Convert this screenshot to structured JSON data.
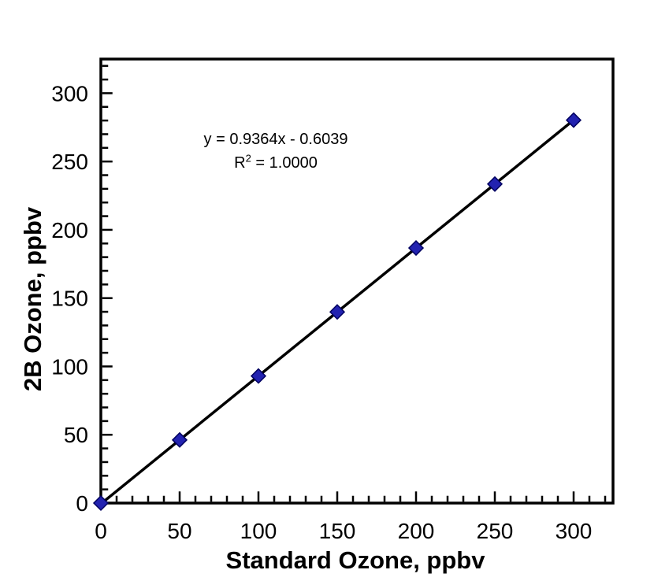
{
  "chart_data": {
    "type": "scatter",
    "title": "",
    "xlabel": "Standard Ozone, ppbv",
    "ylabel": "2B Ozone, ppbv",
    "x": [
      0,
      50,
      100,
      150,
      200,
      250,
      300
    ],
    "y": [
      0.0,
      46.2,
      93.0,
      139.9,
      186.7,
      233.5,
      280.3
    ],
    "trendline": {
      "slope": 0.9364,
      "intercept": -0.6039,
      "x_start": 0,
      "x_end": 300,
      "color": "#000000"
    },
    "annotation": {
      "equation": "y = 0.9364x - 0.6039",
      "r_base": "R",
      "r_exponent": "2",
      "r_value": " = 1.0000"
    },
    "xlim": [
      0,
      325
    ],
    "ylim": [
      0,
      325
    ],
    "x_major_ticks": [
      0,
      50,
      100,
      150,
      200,
      250,
      300
    ],
    "y_major_ticks": [
      0,
      50,
      100,
      150,
      200,
      250,
      300
    ],
    "major_tick_step": 50,
    "minor_tick_step": 10,
    "grid": false,
    "legend": "none",
    "marker": {
      "shape": "diamond",
      "fill_color": "#2222b0",
      "edge_color": "#000060"
    },
    "axis_color": "#000000",
    "background": "#ffffff"
  }
}
